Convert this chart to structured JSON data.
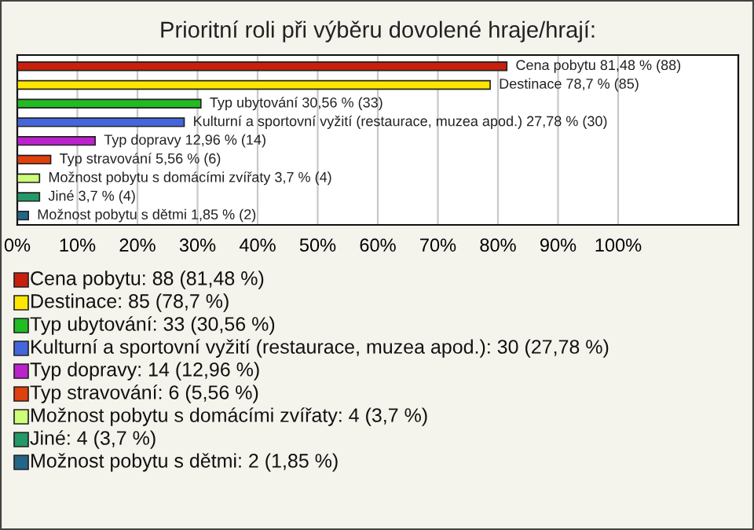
{
  "chart_data": {
    "type": "bar",
    "orientation": "horizontal",
    "title": "Prioritní roli při výběru dovolené hraje/hrají:",
    "categories": [
      null,
      null,
      null,
      null,
      null,
      null,
      null,
      null,
      null
    ],
    "values": [
      81.48,
      78.7,
      30.56,
      27.78,
      12.96,
      5.56,
      3.7,
      3.7,
      1.85
    ],
    "colors": [
      "#c8200c",
      "#ffe600",
      "#22bb22",
      "#4466dd",
      "#bb22cc",
      "#e0400c",
      "#ccff77",
      "#229966",
      "#226688"
    ],
    "value_labels": [
      "Cena pobytu 81,48 % (88)",
      "Destinace 78,7 % (85)",
      "Typ ubytování 30,56 % (33)",
      "Kulturní a sportovní vyžití (restaurace, muzea apod.) 27,78 % (30)",
      "Typ dopravy 12,96 % (14)",
      "Typ stravování 5,56 % (6)",
      "Možnost pobytu s domácími zvířaty 3,7 % (4)",
      "Jiné 3,7 % (4)",
      "Možnost pobytu s dětmi 1,85 % (2)"
    ],
    "annotations": [
      "Cena pobytu: 88 (81,48 %)",
      "Destinace: 85 (78,7 %)",
      "Typ ubytování: 33 (30,56 %)",
      "Kulturní a sportovní vyžití (restaurace, muzea apod.): 30 (27,78 %)",
      "Typ dopravy: 14 (12,96 %)",
      "Typ stravování: 6 (5,56 %)",
      "Možnost pobytu s domácími zvířaty: 4 (3,7 %)",
      "Jiné: 4 (3,7 %)",
      "Možnost pobytu s dětmi: 2 (1,85 %)"
    ],
    "xlim": [
      0,
      120
    ],
    "xticks": [
      {
        "value": 0,
        "label": "0%"
      },
      {
        "value": 10,
        "label": "10%"
      },
      {
        "value": 20,
        "label": "20%"
      },
      {
        "value": 30,
        "label": "30%"
      },
      {
        "value": 40,
        "label": "40%"
      },
      {
        "value": 50,
        "label": "50%"
      },
      {
        "value": 60,
        "label": "60%"
      },
      {
        "value": 70,
        "label": "70%"
      },
      {
        "value": 80,
        "label": "80%"
      },
      {
        "value": 90,
        "label": "90%"
      },
      {
        "value": 100,
        "label": "100%"
      }
    ],
    "tick_labels": "x",
    "grid": "x"
  }
}
